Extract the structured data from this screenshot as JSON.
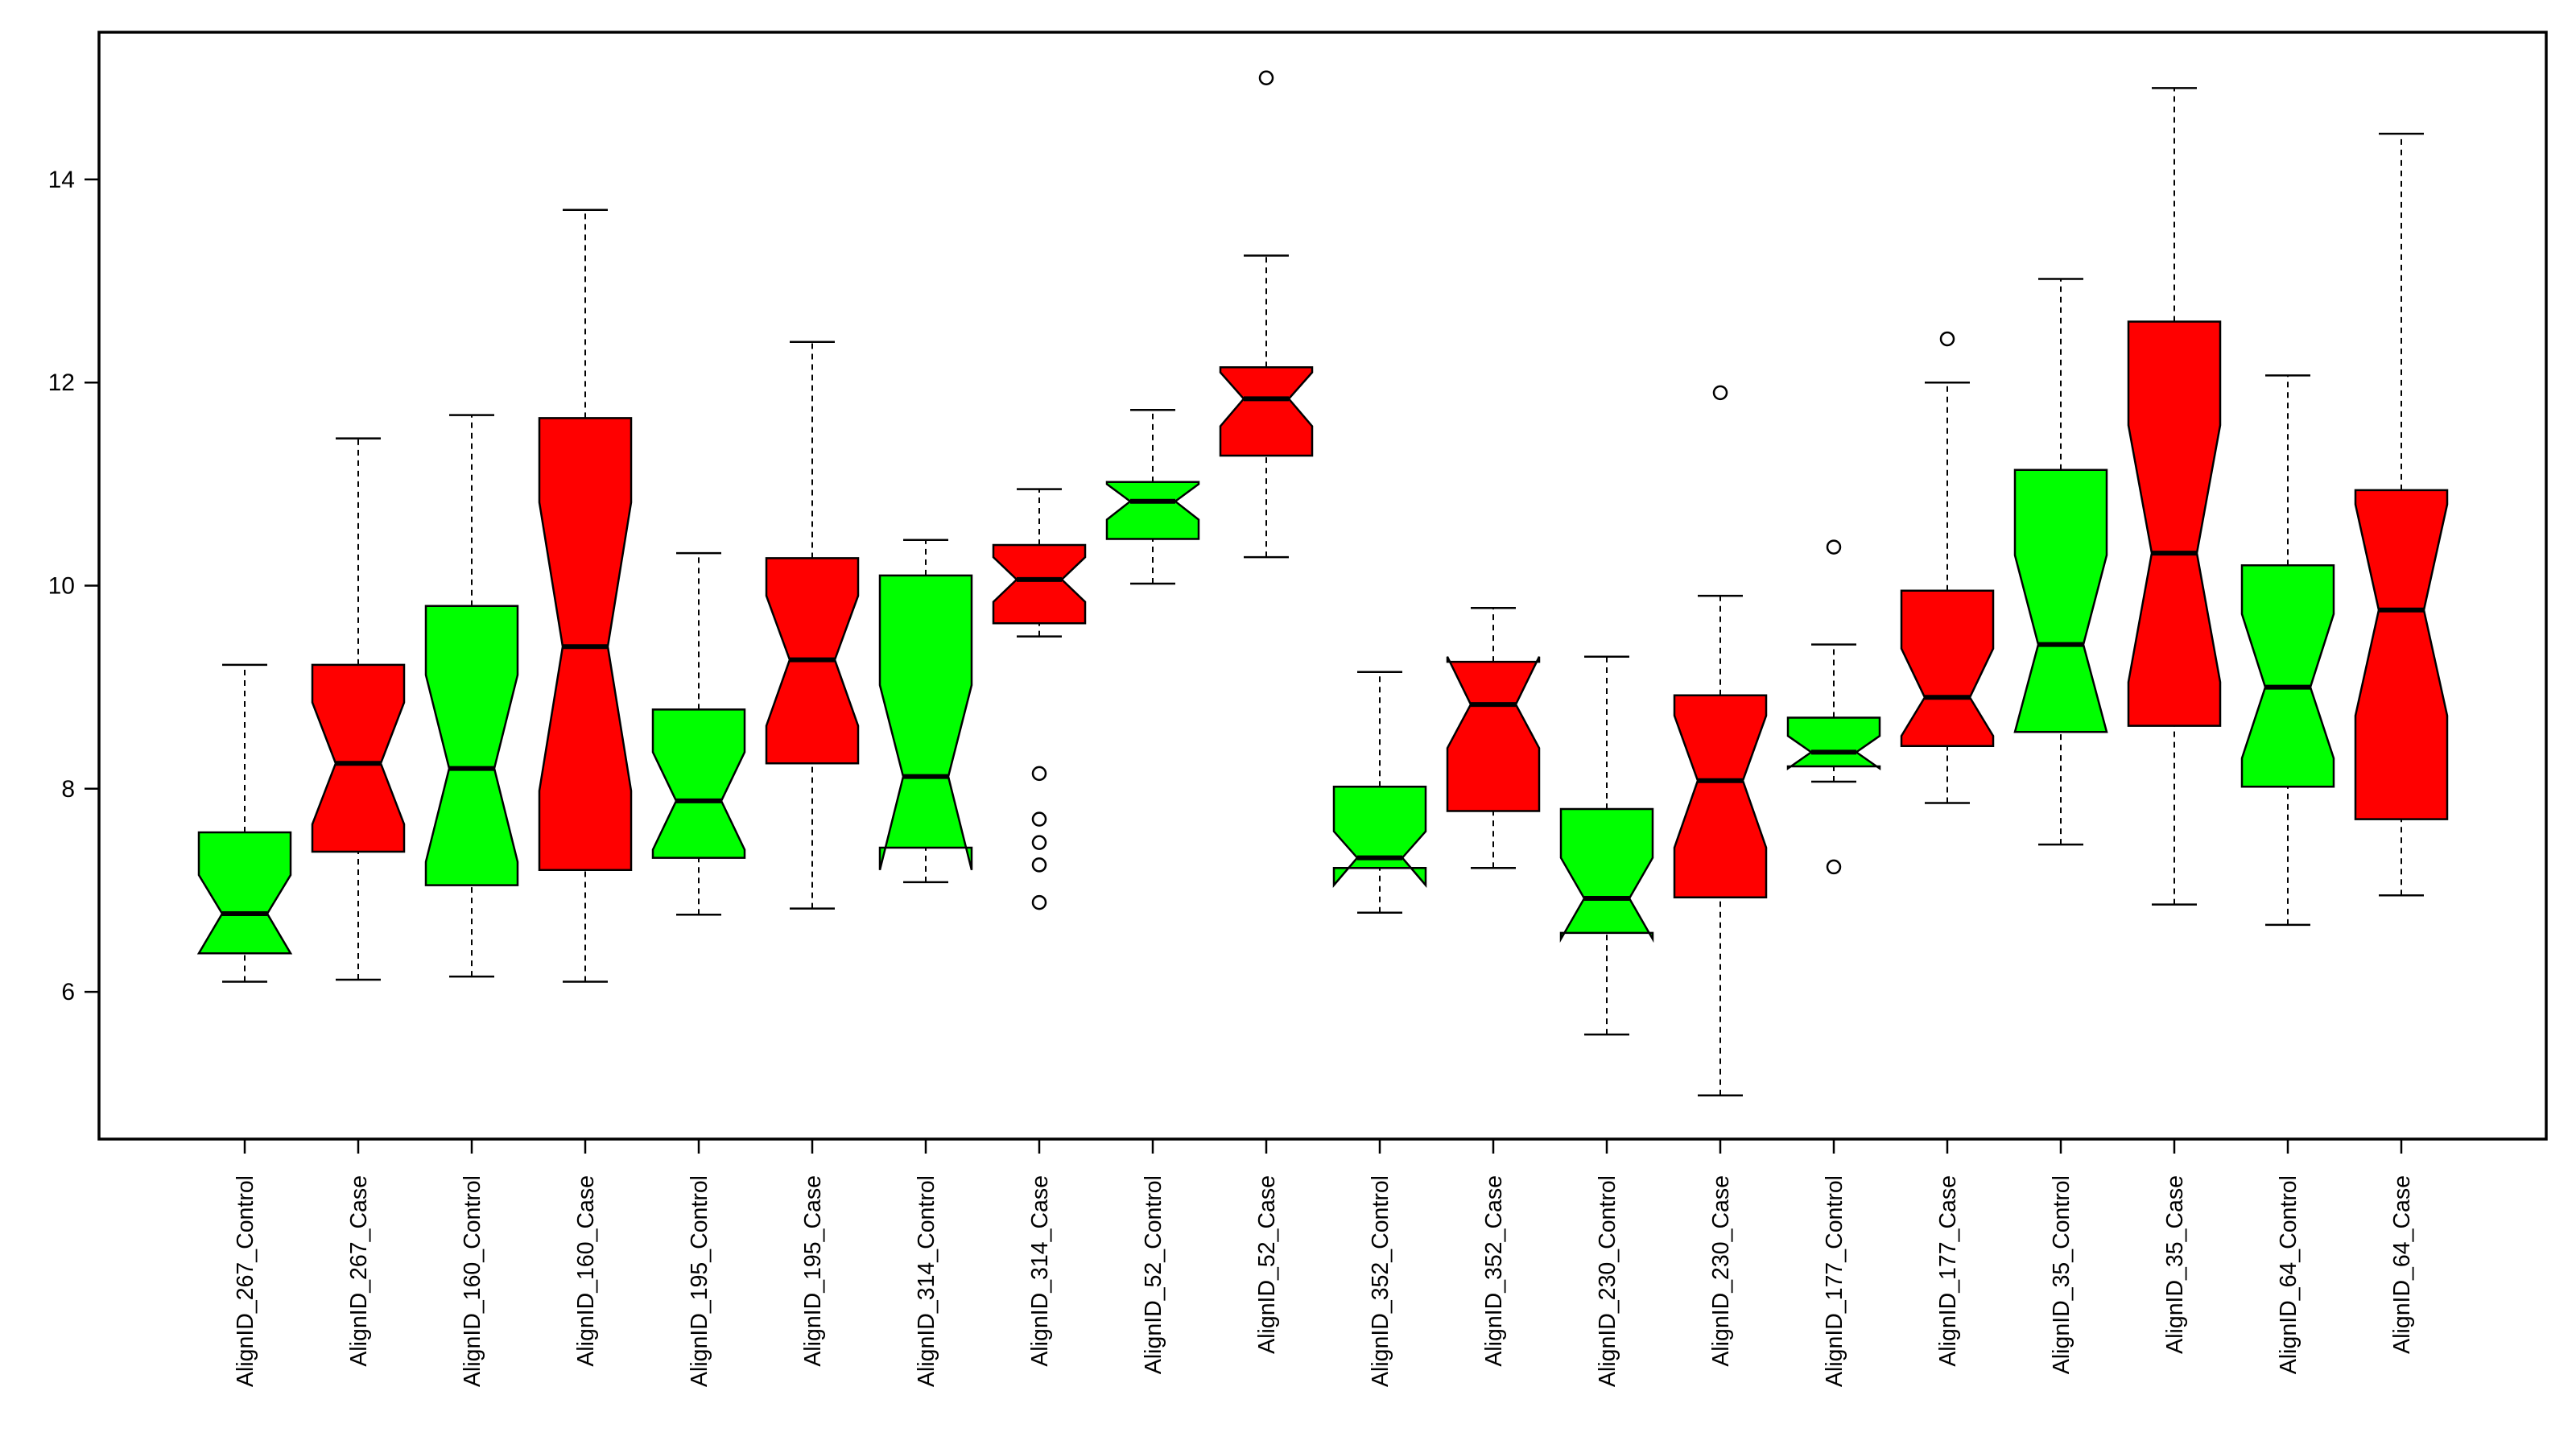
{
  "chart_data": {
    "type": "boxplot",
    "notched": true,
    "title": "",
    "xlabel": "",
    "ylabel": "",
    "ylim": [
      4.55,
      15.45
    ],
    "yticks": [
      6,
      8,
      10,
      12,
      14
    ],
    "colors": {
      "Control": "#00ff00",
      "Case": "#ff0000",
      "outline": "#000000",
      "background": "#ffffff"
    },
    "series": [
      {
        "label": "AlignID_267_Control",
        "group": "Control",
        "whisker_low": 6.1,
        "q1": 6.38,
        "median": 6.77,
        "q3": 7.57,
        "whisker_high": 9.22,
        "notch": [
          6.38,
          7.15
        ],
        "outliers": []
      },
      {
        "label": "AlignID_267_Case",
        "group": "Case",
        "whisker_low": 6.12,
        "q1": 7.38,
        "median": 8.25,
        "q3": 9.22,
        "whisker_high": 11.45,
        "notch": [
          7.65,
          8.85
        ],
        "outliers": []
      },
      {
        "label": "AlignID_160_Control",
        "group": "Control",
        "whisker_low": 6.15,
        "q1": 7.05,
        "median": 8.2,
        "q3": 9.8,
        "whisker_high": 11.68,
        "notch": [
          7.28,
          9.12
        ],
        "outliers": []
      },
      {
        "label": "AlignID_160_Case",
        "group": "Case",
        "whisker_low": 6.1,
        "q1": 7.2,
        "median": 9.4,
        "q3": 11.65,
        "whisker_high": 13.7,
        "notch": [
          7.98,
          10.82
        ],
        "outliers": []
      },
      {
        "label": "AlignID_195_Control",
        "group": "Control",
        "whisker_low": 6.76,
        "q1": 7.32,
        "median": 7.88,
        "q3": 8.78,
        "whisker_high": 10.32,
        "notch": [
          7.4,
          8.36
        ],
        "outliers": []
      },
      {
        "label": "AlignID_195_Case",
        "group": "Case",
        "whisker_low": 6.82,
        "q1": 8.25,
        "median": 9.27,
        "q3": 10.27,
        "whisker_high": 12.4,
        "notch": [
          8.62,
          9.9
        ],
        "outliers": []
      },
      {
        "label": "AlignID_314_Control",
        "group": "Control",
        "whisker_low": 7.08,
        "q1": 7.42,
        "median": 8.12,
        "q3": 10.1,
        "whisker_high": 10.45,
        "notch": [
          7.2,
          9.02
        ],
        "outliers": []
      },
      {
        "label": "AlignID_314_Case",
        "group": "Case",
        "whisker_low": 9.5,
        "q1": 9.63,
        "median": 10.06,
        "q3": 10.4,
        "whisker_high": 10.95,
        "notch": [
          9.84,
          10.28
        ],
        "outliers": [
          8.15,
          7.7,
          7.47,
          7.25,
          6.88
        ]
      },
      {
        "label": "AlignID_52_Control",
        "group": "Control",
        "whisker_low": 10.02,
        "q1": 10.46,
        "median": 10.83,
        "q3": 11.02,
        "whisker_high": 11.73,
        "notch": [
          10.65,
          11.0
        ],
        "outliers": []
      },
      {
        "label": "AlignID_52_Case",
        "group": "Case",
        "whisker_low": 10.28,
        "q1": 11.28,
        "median": 11.84,
        "q3": 12.15,
        "whisker_high": 13.25,
        "notch": [
          11.57,
          12.1
        ],
        "outliers": [
          15.0
        ]
      },
      {
        "label": "AlignID_352_Control",
        "group": "Control",
        "whisker_low": 6.78,
        "q1": 7.22,
        "median": 7.32,
        "q3": 8.02,
        "whisker_high": 9.15,
        "notch": [
          7.05,
          7.58
        ],
        "outliers": []
      },
      {
        "label": "AlignID_352_Case",
        "group": "Case",
        "whisker_low": 7.22,
        "q1": 7.78,
        "median": 8.83,
        "q3": 9.25,
        "whisker_high": 9.78,
        "notch": [
          8.4,
          9.3
        ],
        "outliers": []
      },
      {
        "label": "AlignID_230_Control",
        "group": "Control",
        "whisker_low": 5.58,
        "q1": 6.58,
        "median": 6.92,
        "q3": 7.8,
        "whisker_high": 9.3,
        "notch": [
          6.52,
          7.32
        ],
        "outliers": []
      },
      {
        "label": "AlignID_230_Case",
        "group": "Case",
        "whisker_low": 4.98,
        "q1": 6.93,
        "median": 8.08,
        "q3": 8.92,
        "whisker_high": 9.9,
        "notch": [
          7.42,
          8.72
        ],
        "outliers": [
          11.9
        ]
      },
      {
        "label": "AlignID_177_Control",
        "group": "Control",
        "whisker_low": 8.07,
        "q1": 8.22,
        "median": 8.36,
        "q3": 8.7,
        "whisker_high": 9.42,
        "notch": [
          8.2,
          8.52
        ],
        "outliers": [
          10.38,
          7.23
        ]
      },
      {
        "label": "AlignID_177_Case",
        "group": "Case",
        "whisker_low": 7.86,
        "q1": 8.42,
        "median": 8.9,
        "q3": 9.95,
        "whisker_high": 12.0,
        "notch": [
          8.52,
          9.38
        ],
        "outliers": [
          12.43
        ]
      },
      {
        "label": "AlignID_35_Control",
        "group": "Control",
        "whisker_low": 7.45,
        "q1": 8.56,
        "median": 9.42,
        "q3": 11.14,
        "whisker_high": 13.02,
        "notch": [
          8.56,
          10.3
        ],
        "outliers": []
      },
      {
        "label": "AlignID_35_Case",
        "group": "Case",
        "whisker_low": 6.86,
        "q1": 8.62,
        "median": 10.32,
        "q3": 12.6,
        "whisker_high": 14.9,
        "notch": [
          9.05,
          11.58
        ],
        "outliers": []
      },
      {
        "label": "AlignID_64_Control",
        "group": "Control",
        "whisker_low": 6.66,
        "q1": 8.02,
        "median": 9.0,
        "q3": 10.2,
        "whisker_high": 12.07,
        "notch": [
          8.3,
          9.72
        ],
        "outliers": []
      },
      {
        "label": "AlignID_64_Case",
        "group": "Case",
        "whisker_low": 6.95,
        "q1": 7.7,
        "median": 9.76,
        "q3": 10.94,
        "whisker_high": 14.45,
        "notch": [
          8.72,
          10.8
        ],
        "outliers": []
      }
    ]
  }
}
